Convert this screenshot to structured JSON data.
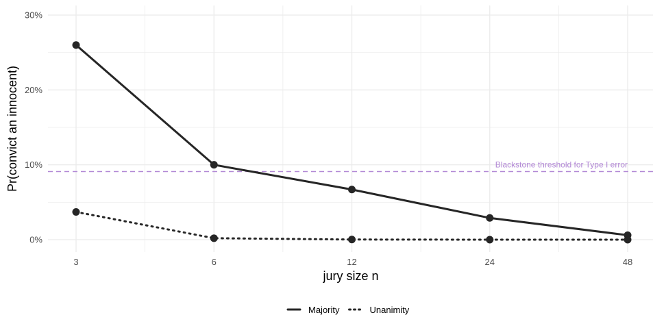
{
  "chart_data": {
    "type": "line",
    "xlabel": "jury size n",
    "ylabel": "Pr(convict an innocent)",
    "x_scale": "log2",
    "categories": [
      "3",
      "6",
      "12",
      "24",
      "48"
    ],
    "x": [
      3,
      6,
      12,
      24,
      48
    ],
    "ylim": [
      0,
      0.3
    ],
    "y_ticks": [
      "0%",
      "10%",
      "20%",
      "30%"
    ],
    "grid": true,
    "series": [
      {
        "name": "Majority",
        "linetype": "solid",
        "values": [
          0.26,
          0.1,
          0.067,
          0.029,
          0.006
        ]
      },
      {
        "name": "Unanimity",
        "linetype": "dotted",
        "values": [
          0.037,
          0.002,
          0.0002,
          0.0,
          0.0
        ]
      }
    ],
    "reference_line": {
      "y": 0.091,
      "label": "Blackstone threshold for Type I error",
      "color": "#b389d6",
      "linetype": "dashed"
    },
    "legend_position": "bottom",
    "colors": {
      "series": "#262626",
      "grid": "#ebebeb"
    }
  }
}
